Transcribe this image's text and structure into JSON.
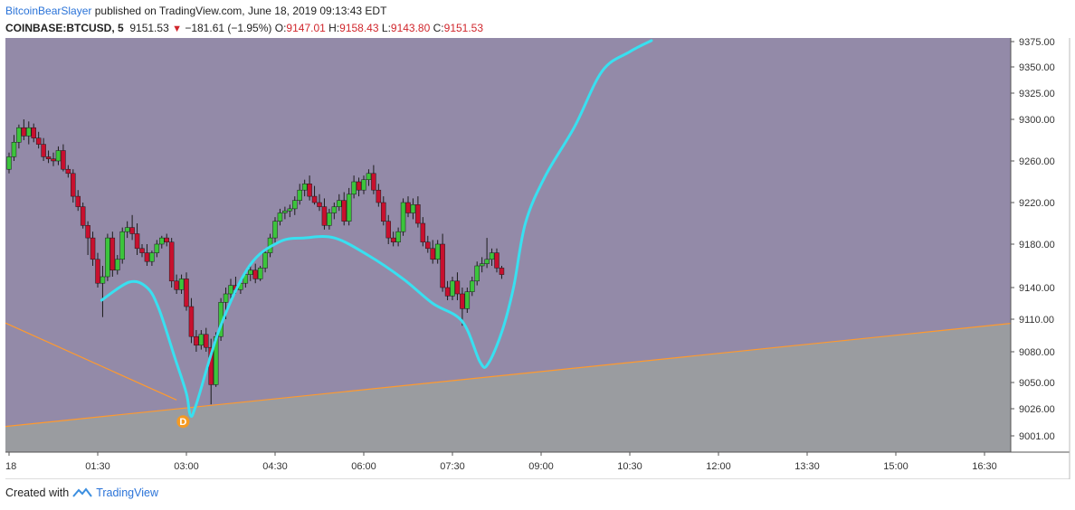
{
  "header": {
    "author": "BitcoinBearSlayer",
    "published_text": "published on TradingView.com, June 18, 2019 09:13:43 EDT",
    "symbol": "COINBASE:BTCUSD, 5",
    "last": "9151.53",
    "change": "−181.61 (−1.95%)",
    "o_label": "O:",
    "o": "9147.01",
    "h_label": "H:",
    "h": "9158.43",
    "l_label": "L:",
    "l": "9143.80",
    "c_label": "C:",
    "c": "9151.53"
  },
  "footer": {
    "created_with": "Created with",
    "brand": "TradingView"
  },
  "colors": {
    "upper_zone": "#938aa8",
    "lower_zone": "#9a9ca0",
    "trendline": "#ff9a2e",
    "projection": "#38e0f0",
    "up_candle": "#3cc43c",
    "down_candle": "#c8102e",
    "marker": "#f59a22"
  },
  "chart_data": {
    "type": "candlestick",
    "title": "",
    "interval_minutes": 5,
    "x_ticks": [
      "18",
      "01:30",
      "03:00",
      "04:30",
      "06:00",
      "07:30",
      "09:00",
      "10:30",
      "12:00",
      "13:30",
      "15:00",
      "16:30"
    ],
    "x_tick_minutes": [
      0,
      90,
      180,
      270,
      360,
      450,
      540,
      630,
      720,
      810,
      900,
      990
    ],
    "y_ticks": [
      "9375.00",
      "9350.00",
      "9325.00",
      "9300.00",
      "9260.00",
      "9220.00",
      "9180.00",
      "9140.00",
      "9110.00",
      "9080.00",
      "9050.00",
      "9026.00",
      "9001.00"
    ],
    "y_tick_values": [
      9375,
      9350,
      9325,
      9300,
      9260,
      9220,
      9180,
      9140,
      9110,
      9080,
      9050,
      9026,
      9001
    ],
    "grid": false,
    "candles_ohlc": [
      [
        9252,
        9268,
        9248,
        9264
      ],
      [
        9264,
        9285,
        9260,
        9278
      ],
      [
        9278,
        9295,
        9272,
        9292
      ],
      [
        9292,
        9300,
        9280,
        9284
      ],
      [
        9284,
        9298,
        9276,
        9292
      ],
      [
        9292,
        9296,
        9278,
        9282
      ],
      [
        9282,
        9288,
        9272,
        9276
      ],
      [
        9276,
        9282,
        9260,
        9264
      ],
      [
        9264,
        9270,
        9258,
        9262
      ],
      [
        9262,
        9268,
        9255,
        9260
      ],
      [
        9260,
        9274,
        9256,
        9270
      ],
      [
        9270,
        9276,
        9250,
        9252
      ],
      [
        9252,
        9256,
        9244,
        9248
      ],
      [
        9248,
        9252,
        9220,
        9226
      ],
      [
        9226,
        9232,
        9212,
        9216
      ],
      [
        9216,
        9220,
        9195,
        9198
      ],
      [
        9198,
        9202,
        9170,
        9186
      ],
      [
        9186,
        9192,
        9160,
        9166
      ],
      [
        9166,
        9172,
        9140,
        9144
      ],
      [
        9144,
        9160,
        9112,
        9150
      ],
      [
        9150,
        9190,
        9146,
        9186
      ],
      [
        9186,
        9192,
        9150,
        9156
      ],
      [
        9156,
        9170,
        9152,
        9166
      ],
      [
        9166,
        9196,
        9162,
        9192
      ],
      [
        9192,
        9202,
        9186,
        9196
      ],
      [
        9196,
        9208,
        9184,
        9190
      ],
      [
        9190,
        9200,
        9170,
        9176
      ],
      [
        9176,
        9180,
        9168,
        9172
      ],
      [
        9172,
        9180,
        9160,
        9164
      ],
      [
        9164,
        9174,
        9160,
        9172
      ],
      [
        9172,
        9184,
        9168,
        9180
      ],
      [
        9180,
        9188,
        9176,
        9186
      ],
      [
        9186,
        9190,
        9178,
        9182
      ],
      [
        9182,
        9186,
        9140,
        9146
      ],
      [
        9146,
        9152,
        9134,
        9138
      ],
      [
        9138,
        9152,
        9134,
        9148
      ],
      [
        9148,
        9154,
        9118,
        9122
      ],
      [
        9122,
        9130,
        9088,
        9094
      ],
      [
        9094,
        9100,
        9080,
        9086
      ],
      [
        9086,
        9100,
        9082,
        9096
      ],
      [
        9096,
        9102,
        9080,
        9084
      ],
      [
        9084,
        9092,
        9030,
        9048
      ],
      [
        9048,
        9098,
        9046,
        9094
      ],
      [
        9094,
        9130,
        9090,
        9126
      ],
      [
        9126,
        9140,
        9110,
        9134
      ],
      [
        9134,
        9148,
        9128,
        9142
      ],
      [
        9142,
        9150,
        9134,
        9138
      ],
      [
        9138,
        9146,
        9134,
        9144
      ],
      [
        9144,
        9156,
        9140,
        9152
      ],
      [
        9152,
        9160,
        9146,
        9156
      ],
      [
        9156,
        9162,
        9144,
        9148
      ],
      [
        9148,
        9160,
        9146,
        9158
      ],
      [
        9158,
        9176,
        9154,
        9172
      ],
      [
        9172,
        9190,
        9168,
        9186
      ],
      [
        9186,
        9206,
        9180,
        9202
      ],
      [
        9202,
        9214,
        9198,
        9210
      ],
      [
        9210,
        9216,
        9204,
        9212
      ],
      [
        9212,
        9218,
        9206,
        9214
      ],
      [
        9214,
        9226,
        9208,
        9222
      ],
      [
        9222,
        9238,
        9218,
        9232
      ],
      [
        9232,
        9242,
        9226,
        9238
      ],
      [
        9238,
        9246,
        9222,
        9226
      ],
      [
        9226,
        9236,
        9218,
        9220
      ],
      [
        9220,
        9228,
        9212,
        9216
      ],
      [
        9216,
        9224,
        9194,
        9198
      ],
      [
        9198,
        9214,
        9194,
        9210
      ],
      [
        9210,
        9220,
        9204,
        9216
      ],
      [
        9216,
        9228,
        9212,
        9222
      ],
      [
        9222,
        9230,
        9198,
        9202
      ],
      [
        9202,
        9234,
        9198,
        9228
      ],
      [
        9228,
        9246,
        9224,
        9240
      ],
      [
        9240,
        9244,
        9226,
        9232
      ],
      [
        9232,
        9246,
        9228,
        9242
      ],
      [
        9242,
        9252,
        9236,
        9248
      ],
      [
        9248,
        9256,
        9228,
        9232
      ],
      [
        9232,
        9238,
        9216,
        9220
      ],
      [
        9220,
        9226,
        9198,
        9202
      ],
      [
        9202,
        9208,
        9180,
        9186
      ],
      [
        9186,
        9192,
        9178,
        9182
      ],
      [
        9182,
        9196,
        9178,
        9192
      ],
      [
        9192,
        9224,
        9188,
        9220
      ],
      [
        9220,
        9226,
        9206,
        9210
      ],
      [
        9210,
        9224,
        9204,
        9218
      ],
      [
        9218,
        9226,
        9196,
        9200
      ],
      [
        9200,
        9206,
        9178,
        9182
      ],
      [
        9182,
        9188,
        9172,
        9176
      ],
      [
        9176,
        9184,
        9162,
        9166
      ],
      [
        9166,
        9184,
        9162,
        9180
      ],
      [
        9180,
        9190,
        9136,
        9140
      ],
      [
        9140,
        9146,
        9128,
        9132
      ],
      [
        9132,
        9150,
        9128,
        9146
      ],
      [
        9146,
        9154,
        9128,
        9134
      ],
      [
        9134,
        9140,
        9104,
        9120
      ],
      [
        9120,
        9140,
        9116,
        9136
      ],
      [
        9136,
        9150,
        9132,
        9146
      ],
      [
        9146,
        9164,
        9142,
        9160
      ],
      [
        9160,
        9168,
        9154,
        9162
      ],
      [
        9162,
        9186,
        9158,
        9166
      ],
      [
        9166,
        9176,
        9160,
        9172
      ],
      [
        9172,
        9176,
        9154,
        9158
      ],
      [
        9158,
        9160,
        9148,
        9152
      ]
    ],
    "trendline_descending": {
      "from": {
        "minute": 0,
        "price": 9105
      },
      "to": {
        "minute": 170,
        "price": 9034
      }
    },
    "trendline_ascending": {
      "from": {
        "minute": 0,
        "price": 9010
      },
      "to": {
        "minute": 1100,
        "price": 9114
      }
    },
    "projection_path": [
      {
        "minute": 94,
        "price": 9128
      },
      {
        "minute": 122,
        "price": 9145
      },
      {
        "minute": 140,
        "price": 9140
      },
      {
        "minute": 152,
        "price": 9120
      },
      {
        "minute": 168,
        "price": 9075
      },
      {
        "minute": 180,
        "price": 9040
      },
      {
        "minute": 184,
        "price": 9020
      },
      {
        "minute": 190,
        "price": 9030
      },
      {
        "minute": 214,
        "price": 9102
      },
      {
        "minute": 244,
        "price": 9160
      },
      {
        "minute": 274,
        "price": 9182
      },
      {
        "minute": 300,
        "price": 9186
      },
      {
        "minute": 330,
        "price": 9186
      },
      {
        "minute": 364,
        "price": 9170
      },
      {
        "minute": 400,
        "price": 9148
      },
      {
        "minute": 430,
        "price": 9125
      },
      {
        "minute": 460,
        "price": 9108
      },
      {
        "minute": 478,
        "price": 9070
      },
      {
        "minute": 486,
        "price": 9068
      },
      {
        "minute": 500,
        "price": 9098
      },
      {
        "minute": 512,
        "price": 9140
      },
      {
        "minute": 524,
        "price": 9200
      },
      {
        "minute": 544,
        "price": 9245
      },
      {
        "minute": 574,
        "price": 9293
      },
      {
        "minute": 602,
        "price": 9346
      },
      {
        "minute": 630,
        "price": 9365
      },
      {
        "minute": 652,
        "price": 9376
      }
    ],
    "marker": {
      "label": "D",
      "minute": 184,
      "price": 9020
    }
  }
}
